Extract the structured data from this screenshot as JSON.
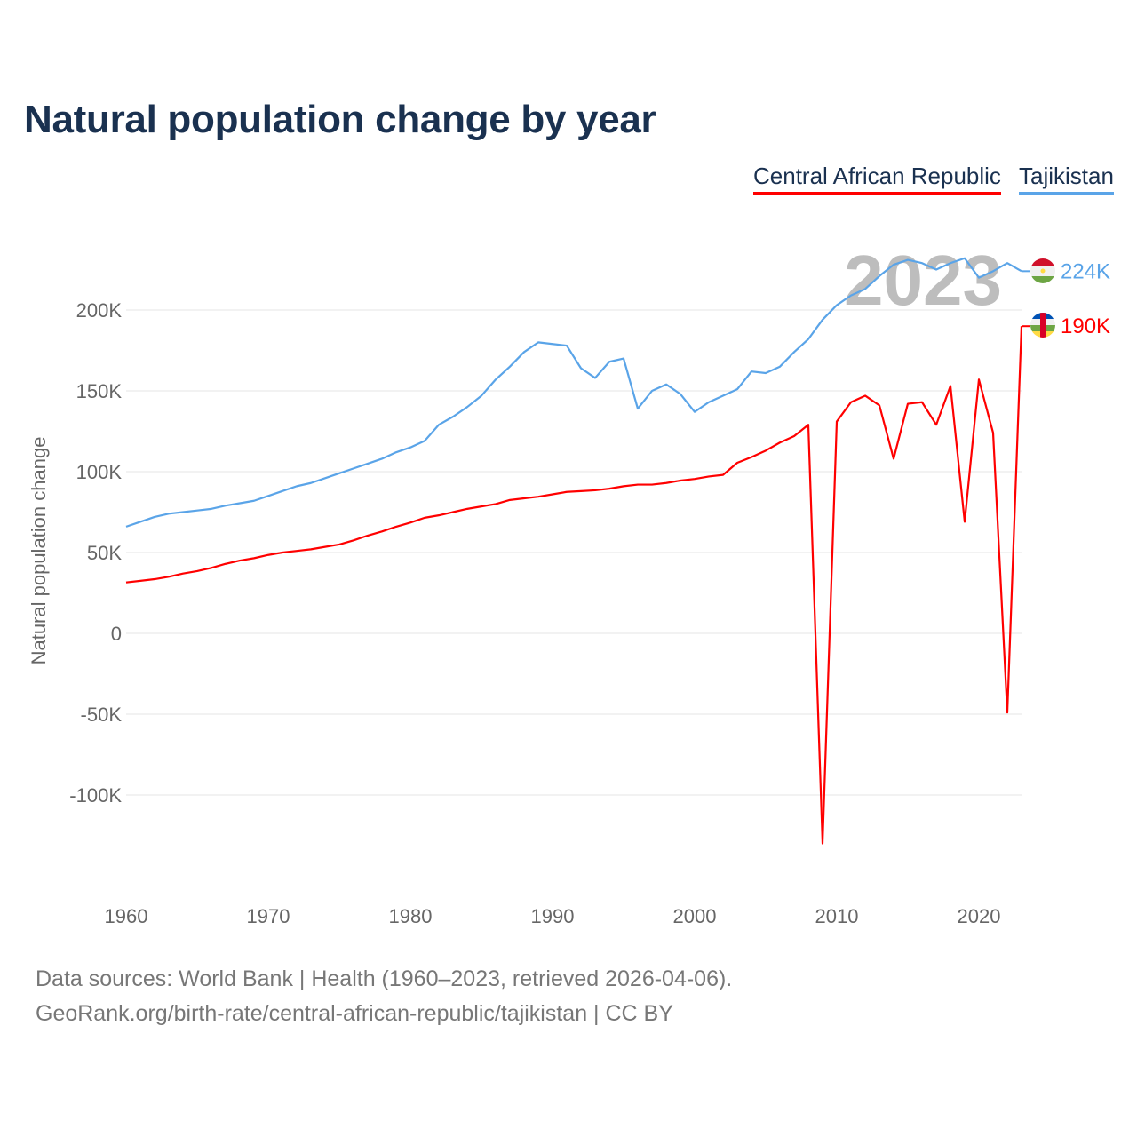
{
  "chart_data": {
    "type": "line",
    "title": "Natural population change by year",
    "xlabel": "",
    "ylabel": "Natural population change",
    "xlim": [
      1960,
      2023
    ],
    "ylim": [
      -150000,
      240000
    ],
    "y_ticks": [
      200000,
      150000,
      100000,
      50000,
      0,
      -50000,
      -100000
    ],
    "y_tick_labels": [
      "200K",
      "150K",
      "100K",
      "50K",
      "0",
      "-50K",
      "-100K"
    ],
    "x_ticks": [
      1960,
      1970,
      1980,
      1990,
      2000,
      2010,
      2020
    ],
    "x_tick_labels": [
      "1960",
      "1970",
      "1980",
      "1990",
      "2000",
      "2010",
      "2020"
    ],
    "grid": true,
    "legend_position": "top-right",
    "year_watermark": "2023",
    "x": [
      1960,
      1961,
      1962,
      1963,
      1964,
      1965,
      1966,
      1967,
      1968,
      1969,
      1970,
      1971,
      1972,
      1973,
      1974,
      1975,
      1976,
      1977,
      1978,
      1979,
      1980,
      1981,
      1982,
      1983,
      1984,
      1985,
      1986,
      1987,
      1988,
      1989,
      1990,
      1991,
      1992,
      1993,
      1994,
      1995,
      1996,
      1997,
      1998,
      1999,
      2000,
      2001,
      2002,
      2003,
      2004,
      2005,
      2006,
      2007,
      2008,
      2009,
      2010,
      2011,
      2012,
      2013,
      2014,
      2015,
      2016,
      2017,
      2018,
      2019,
      2020,
      2021,
      2022,
      2023
    ],
    "series": [
      {
        "name": "Central African Republic",
        "color": "#ff0000",
        "end_label": "190K",
        "values": [
          31500,
          32500,
          33500,
          35000,
          37000,
          38500,
          40500,
          43000,
          45000,
          46500,
          48500,
          50000,
          51000,
          52000,
          53500,
          55000,
          57500,
          60500,
          63000,
          66000,
          68500,
          71500,
          73000,
          75000,
          77000,
          78500,
          80000,
          82500,
          83500,
          84500,
          86000,
          87500,
          88000,
          88500,
          89500,
          91000,
          92000,
          92000,
          93000,
          94500,
          95500,
          97000,
          98000,
          105500,
          109000,
          113000,
          118000,
          122000,
          129000,
          -130000,
          131000,
          143000,
          147000,
          141000,
          108000,
          142000,
          143000,
          129000,
          153000,
          69000,
          157000,
          124000,
          -49000,
          190000
        ]
      },
      {
        "name": "Tajikistan",
        "color": "#5aa4e8",
        "end_label": "224K",
        "values": [
          66000,
          69000,
          72000,
          74000,
          75000,
          76000,
          77000,
          79000,
          80500,
          82000,
          85000,
          88000,
          91000,
          93000,
          96000,
          99000,
          102000,
          105000,
          108000,
          112000,
          115000,
          119000,
          129000,
          134000,
          140000,
          147000,
          157000,
          165000,
          174000,
          180000,
          179000,
          178000,
          164000,
          158000,
          168000,
          170000,
          139000,
          150000,
          154000,
          148000,
          137000,
          143000,
          147000,
          151000,
          162000,
          161000,
          165000,
          174000,
          182000,
          194000,
          203000,
          209000,
          213000,
          221000,
          228000,
          231000,
          229000,
          225000,
          229000,
          232000,
          220000,
          224000,
          229000,
          224000
        ]
      }
    ]
  },
  "footer": {
    "line1": "Data sources: World Bank | Health (1960–2023, retrieved 2026-04-06).",
    "line2": "GeoRank.org/birth-rate/central-african-republic/tajikistan | CC BY"
  }
}
